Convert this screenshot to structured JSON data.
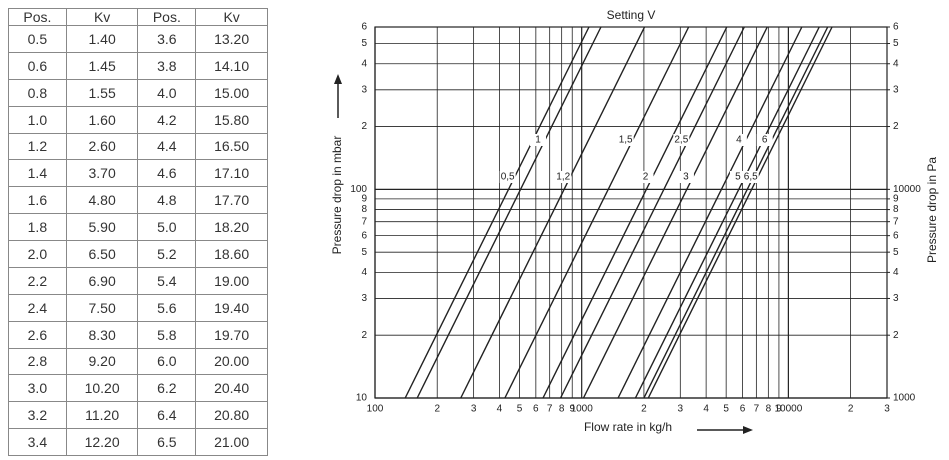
{
  "table": {
    "header": [
      "Pos.",
      "Kv",
      "Pos.",
      "Kv"
    ],
    "rows": [
      [
        "0.5",
        "1.40",
        "3.6",
        "13.20"
      ],
      [
        "0.6",
        "1.45",
        "3.8",
        "14.10"
      ],
      [
        "0.8",
        "1.55",
        "4.0",
        "15.00"
      ],
      [
        "1.0",
        "1.60",
        "4.2",
        "15.80"
      ],
      [
        "1.2",
        "2.60",
        "4.4",
        "16.50"
      ],
      [
        "1.4",
        "3.70",
        "4.6",
        "17.10"
      ],
      [
        "1.6",
        "4.80",
        "4.8",
        "17.70"
      ],
      [
        "1.8",
        "5.90",
        "5.0",
        "18.20"
      ],
      [
        "2.0",
        "6.50",
        "5.2",
        "18.60"
      ],
      [
        "2.2",
        "6.90",
        "5.4",
        "19.00"
      ],
      [
        "2.4",
        "7.50",
        "5.6",
        "19.40"
      ],
      [
        "2.6",
        "8.30",
        "5.8",
        "19.70"
      ],
      [
        "2.8",
        "9.20",
        "6.0",
        "20.00"
      ],
      [
        "3.0",
        "10.20",
        "6.2",
        "20.40"
      ],
      [
        "3.2",
        "11.20",
        "6.4",
        "20.80"
      ],
      [
        "3.4",
        "12.20",
        "6.5",
        "21.00"
      ]
    ]
  },
  "chart_data": {
    "type": "line",
    "title": "Setting V",
    "x_label": "Flow rate in kg/h",
    "y_label": "Pressure drop in mbar",
    "y2_label": "Pressure drop in Pa",
    "log_x": true,
    "log_y": true,
    "grid": true,
    "color": "#222222",
    "xlim": [
      100,
      30000
    ],
    "xticks": [
      100,
      {
        "value": 200,
        "label": "2"
      },
      {
        "value": 300,
        "label": "3"
      },
      {
        "value": 400,
        "label": "4"
      },
      {
        "value": 500,
        "label": "5"
      },
      {
        "value": 600,
        "label": "6"
      },
      {
        "value": 700,
        "label": "7"
      },
      {
        "value": 800,
        "label": "8"
      },
      {
        "value": 900,
        "label": "9"
      },
      1000,
      {
        "value": 2000,
        "label": "2"
      },
      {
        "value": 3000,
        "label": "3"
      },
      {
        "value": 4000,
        "label": "4"
      },
      {
        "value": 5000,
        "label": "5"
      },
      {
        "value": 6000,
        "label": "6"
      },
      {
        "value": 7000,
        "label": "7"
      },
      {
        "value": 8000,
        "label": "8"
      },
      {
        "value": 9000,
        "label": "9"
      },
      10000,
      {
        "value": 20000,
        "label": "2"
      },
      {
        "value": 30000,
        "label": "3"
      }
    ],
    "ylim": [
      10,
      600
    ],
    "yticks": [
      10,
      {
        "value": 20,
        "label": "2"
      },
      {
        "value": 30,
        "label": "3"
      },
      {
        "value": 40,
        "label": "4"
      },
      {
        "value": 50,
        "label": "5"
      },
      {
        "value": 60,
        "label": "6"
      },
      {
        "value": 70,
        "label": "7"
      },
      {
        "value": 80,
        "label": "8"
      },
      {
        "value": 90,
        "label": "9"
      },
      100,
      {
        "value": 200,
        "label": "2"
      },
      {
        "value": 300,
        "label": "3"
      },
      {
        "value": 400,
        "label": "4"
      },
      {
        "value": 500,
        "label": "5"
      },
      {
        "value": 600,
        "label": "6"
      }
    ],
    "y2lim": [
      1000,
      60000
    ],
    "y2ticks": [
      1000,
      {
        "value": 2000,
        "label": "2"
      },
      {
        "value": 3000,
        "label": "3"
      },
      {
        "value": 4000,
        "label": "4"
      },
      {
        "value": 5000,
        "label": "5"
      },
      {
        "value": 6000,
        "label": "6"
      },
      {
        "value": 7000,
        "label": "7"
      },
      {
        "value": 8000,
        "label": "8"
      },
      {
        "value": 9000,
        "label": "9"
      },
      10000,
      {
        "value": 20000,
        "label": "2"
      },
      {
        "value": 30000,
        "label": "3"
      },
      {
        "value": 40000,
        "label": "4"
      },
      {
        "value": 50000,
        "label": "5"
      },
      {
        "value": 60000,
        "label": "6"
      }
    ],
    "series": [
      {
        "name": "0,5",
        "kv": 1.4
      },
      {
        "name": "1",
        "kv": 1.6
      },
      {
        "name": "1,2",
        "kv": 2.6
      },
      {
        "name": "1,5",
        "kv": 4.25
      },
      {
        "name": "2",
        "kv": 6.5
      },
      {
        "name": "2,5",
        "kv": 7.9
      },
      {
        "name": "3",
        "kv": 10.2
      },
      {
        "name": "4",
        "kv": 15.0
      },
      {
        "name": "5",
        "kv": 18.2
      },
      {
        "name": "6",
        "kv": 20.0
      },
      {
        "name": "6,5",
        "kv": 21.0
      }
    ]
  }
}
